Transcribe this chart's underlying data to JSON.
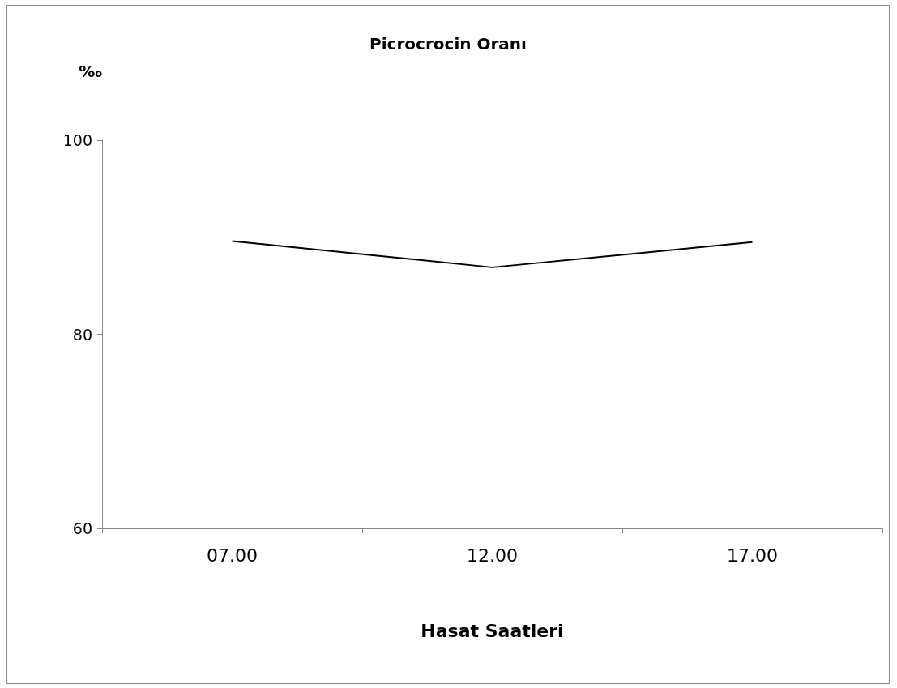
{
  "chart_data": {
    "type": "line",
    "title": "Picrocrocin Oranı",
    "ylabel": "‰",
    "xlabel": "Hasat Saatleri",
    "categories": [
      "07.00",
      "12.00",
      "17.00"
    ],
    "series": [
      {
        "color": "#000000",
        "values": [
          89.6,
          86.9,
          89.5
        ]
      }
    ],
    "ylim": [
      60,
      100
    ],
    "yticks": [
      60,
      80,
      100
    ],
    "grid": false,
    "marker": "none",
    "line_style": "solid"
  }
}
